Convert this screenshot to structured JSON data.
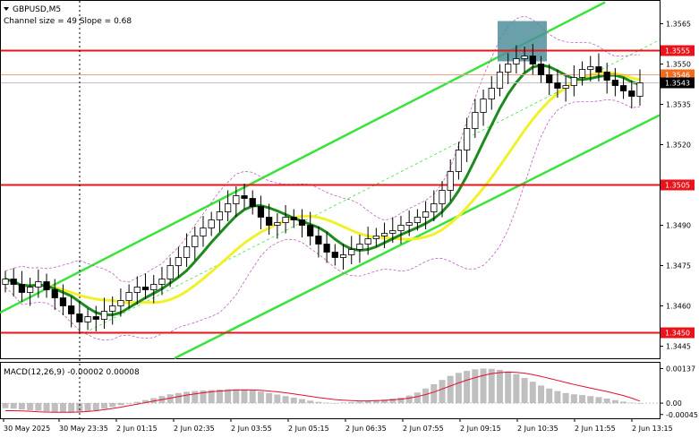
{
  "header": {
    "symbol_label": "GBPUSD,M5",
    "channel_info": "Channel size = 49 Slope = 0.68"
  },
  "colors": {
    "level_line": "#e8141c",
    "channel": "#39e33a",
    "ma_fast": "#1d8a1d",
    "ma_slow": "#f1f12b",
    "bollinger": "#c060c0",
    "price_line": "#f0a080",
    "candle": "#000000",
    "highlight_box": "#4f8f9a",
    "macd_hist": "#bfbfbf",
    "macd_signal": "#e0102a"
  },
  "chart_data": [
    {
      "type": "candlestick",
      "y_ticks": [
        "1.3565",
        "1.3550",
        "1.3535",
        "1.3520",
        "1.3490",
        "1.3475",
        "1.3460",
        "1.3445"
      ],
      "ylim": [
        1.34405,
        1.35735
      ],
      "x_tick_labels": [
        "30 May 2025",
        "30 May 23:35",
        "2 Jun 01:15",
        "2 Jun 02:35",
        "2 Jun 03:55",
        "2 Jun 05:15",
        "2 Jun 06:35",
        "2 Jun 07:55",
        "2 Jun 09:15",
        "2 Jun 10:35",
        "2 Jun 11:55",
        "2 Jun 13:15"
      ],
      "levels": [
        {
          "value": 1.3555,
          "label": "1.3555"
        },
        {
          "value": 1.3505,
          "label": "1.3505"
        },
        {
          "value": 1.345,
          "label": "1.3450"
        }
      ],
      "current_price": {
        "value": 1.3543,
        "label": "1.3543"
      },
      "price_line": {
        "value": 1.3546,
        "label": "1.3546"
      },
      "series_close": [
        1.347,
        1.3468,
        1.3465,
        1.3467,
        1.3469,
        1.3466,
        1.3463,
        1.346,
        1.3457,
        1.3454,
        1.3456,
        1.3455,
        1.3458,
        1.346,
        1.3462,
        1.3465,
        1.3467,
        1.3466,
        1.3468,
        1.347,
        1.3475,
        1.3478,
        1.3482,
        1.3486,
        1.3489,
        1.3492,
        1.3495,
        1.3498,
        1.3501,
        1.35,
        1.3497,
        1.3493,
        1.349,
        1.3491,
        1.3493,
        1.3492,
        1.349,
        1.3486,
        1.3483,
        1.348,
        1.3478,
        1.3479,
        1.3481,
        1.3483,
        1.3485,
        1.3486,
        1.3487,
        1.3488,
        1.349,
        1.3491,
        1.3493,
        1.3495,
        1.3498,
        1.3503,
        1.351,
        1.3518,
        1.3526,
        1.3532,
        1.3537,
        1.3541,
        1.3547,
        1.355,
        1.3552,
        1.3553,
        1.355,
        1.3546,
        1.3543,
        1.3541,
        1.3542,
        1.3545,
        1.3548,
        1.3549,
        1.3547,
        1.3544,
        1.3542,
        1.354,
        1.3538,
        1.3543
      ]
    },
    {
      "type": "macd",
      "title": "MACD(12,26,9) -0.00002 0.00008",
      "y_ticks": [
        "0.00137",
        "0.00",
        "-0.00045"
      ],
      "ylim": [
        -0.0006,
        0.0016
      ],
      "histogram": [
        -0.0002,
        -0.00022,
        -0.00025,
        -0.00028,
        -0.0003,
        -0.00032,
        -0.00035,
        -0.00036,
        -0.00037,
        -0.00035,
        -0.00032,
        -0.00028,
        -0.00022,
        -0.00015,
        -8e-05,
        -2e-05,
        5e-05,
        0.00012,
        0.0002,
        0.00028,
        0.00035,
        0.0004,
        0.00045,
        0.00048,
        0.0005,
        0.00052,
        0.00054,
        0.00055,
        0.00055,
        0.00053,
        0.0005,
        0.00046,
        0.0004,
        0.00034,
        0.00028,
        0.00022,
        0.00016,
        0.0001,
        5e-05,
        2e-05,
        0.0,
        2e-05,
        4e-05,
        6e-05,
        8e-05,
        0.00012,
        0.00015,
        0.00018,
        0.00022,
        0.0003,
        0.00042,
        0.00058,
        0.00075,
        0.00092,
        0.00108,
        0.0012,
        0.00128,
        0.00134,
        0.00137,
        0.00136,
        0.00132,
        0.00125,
        0.00115,
        0.001,
        0.00085,
        0.0007,
        0.00058,
        0.00048,
        0.0004,
        0.00035,
        0.00032,
        0.00028,
        0.00024,
        0.00018,
        0.00012,
        6e-05,
        2e-05,
        -2e-05
      ],
      "signal": [
        -0.0003,
        -0.0003,
        -0.00031,
        -0.00032,
        -0.00034,
        -0.00035,
        -0.00036,
        -0.00036,
        -0.00036,
        -0.00035,
        -0.00033,
        -0.0003,
        -0.00026,
        -0.00021,
        -0.00016,
        -0.0001,
        -4e-05,
        2e-05,
        8e-05,
        0.00014,
        0.0002,
        0.00026,
        0.00032,
        0.00037,
        0.00041,
        0.00045,
        0.00048,
        0.0005,
        0.00052,
        0.00053,
        0.00052,
        0.00051,
        0.00048,
        0.00045,
        0.00041,
        0.00037,
        0.00032,
        0.00027,
        0.00022,
        0.00018,
        0.00014,
        0.00012,
        0.0001,
        9e-05,
        9e-05,
        0.0001,
        0.00011,
        0.00013,
        0.00016,
        0.0002,
        0.00026,
        0.00034,
        0.00044,
        0.00056,
        0.00068,
        0.0008,
        0.00091,
        0.00101,
        0.0011,
        0.00117,
        0.00121,
        0.00123,
        0.00122,
        0.00119,
        0.00113,
        0.00106,
        0.00098,
        0.0009,
        0.00082,
        0.00074,
        0.00067,
        0.0006,
        0.00053,
        0.00046,
        0.00038,
        0.0003,
        0.0002,
        8e-05
      ]
    }
  ]
}
